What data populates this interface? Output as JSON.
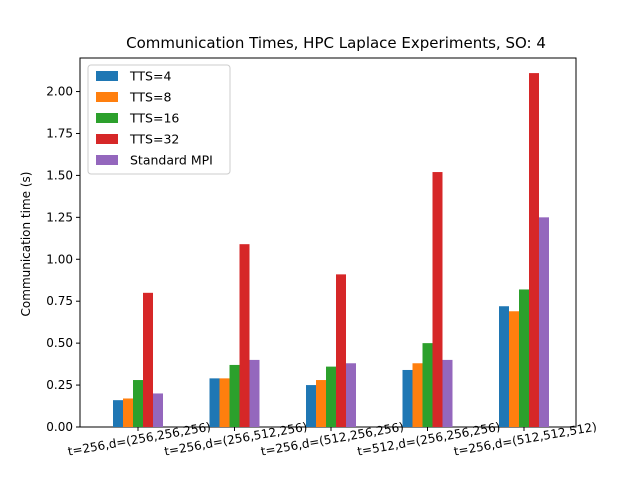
{
  "chart_data": {
    "type": "bar",
    "title": "Communication Times, HPC Laplace Experiments, SO: 4",
    "xlabel": "",
    "ylabel": "Communication time (s)",
    "categories": [
      "t=256,d=(256,256,256)",
      "t=256,d=(256,512,256)",
      "t=256,d=(512,256,256)",
      "t=512,d=(256,256,256)",
      "t=256,d=(512,512,512)"
    ],
    "series": [
      {
        "name": "TTS=4",
        "color": "#1f77b4",
        "values": [
          0.16,
          0.29,
          0.25,
          0.34,
          0.72
        ]
      },
      {
        "name": "TTS=8",
        "color": "#ff7f0e",
        "values": [
          0.17,
          0.29,
          0.28,
          0.38,
          0.69
        ]
      },
      {
        "name": "TTS=16",
        "color": "#2ca02c",
        "values": [
          0.28,
          0.37,
          0.36,
          0.5,
          0.82
        ]
      },
      {
        "name": "TTS=32",
        "color": "#d62728",
        "values": [
          0.8,
          1.09,
          0.91,
          1.52,
          2.11
        ]
      },
      {
        "name": "Standard MPI",
        "color": "#9467bd",
        "values": [
          0.2,
          0.4,
          0.38,
          0.4,
          1.25
        ]
      }
    ],
    "ylim": [
      0,
      2.2
    ],
    "yticks": [
      0.0,
      0.25,
      0.5,
      0.75,
      1.0,
      1.25,
      1.5,
      1.75,
      2.0
    ],
    "ytick_labels": [
      "0.00",
      "0.25",
      "0.50",
      "0.75",
      "1.00",
      "1.25",
      "1.50",
      "1.75",
      "2.00"
    ],
    "grid": false,
    "legend_position": "top-left"
  }
}
